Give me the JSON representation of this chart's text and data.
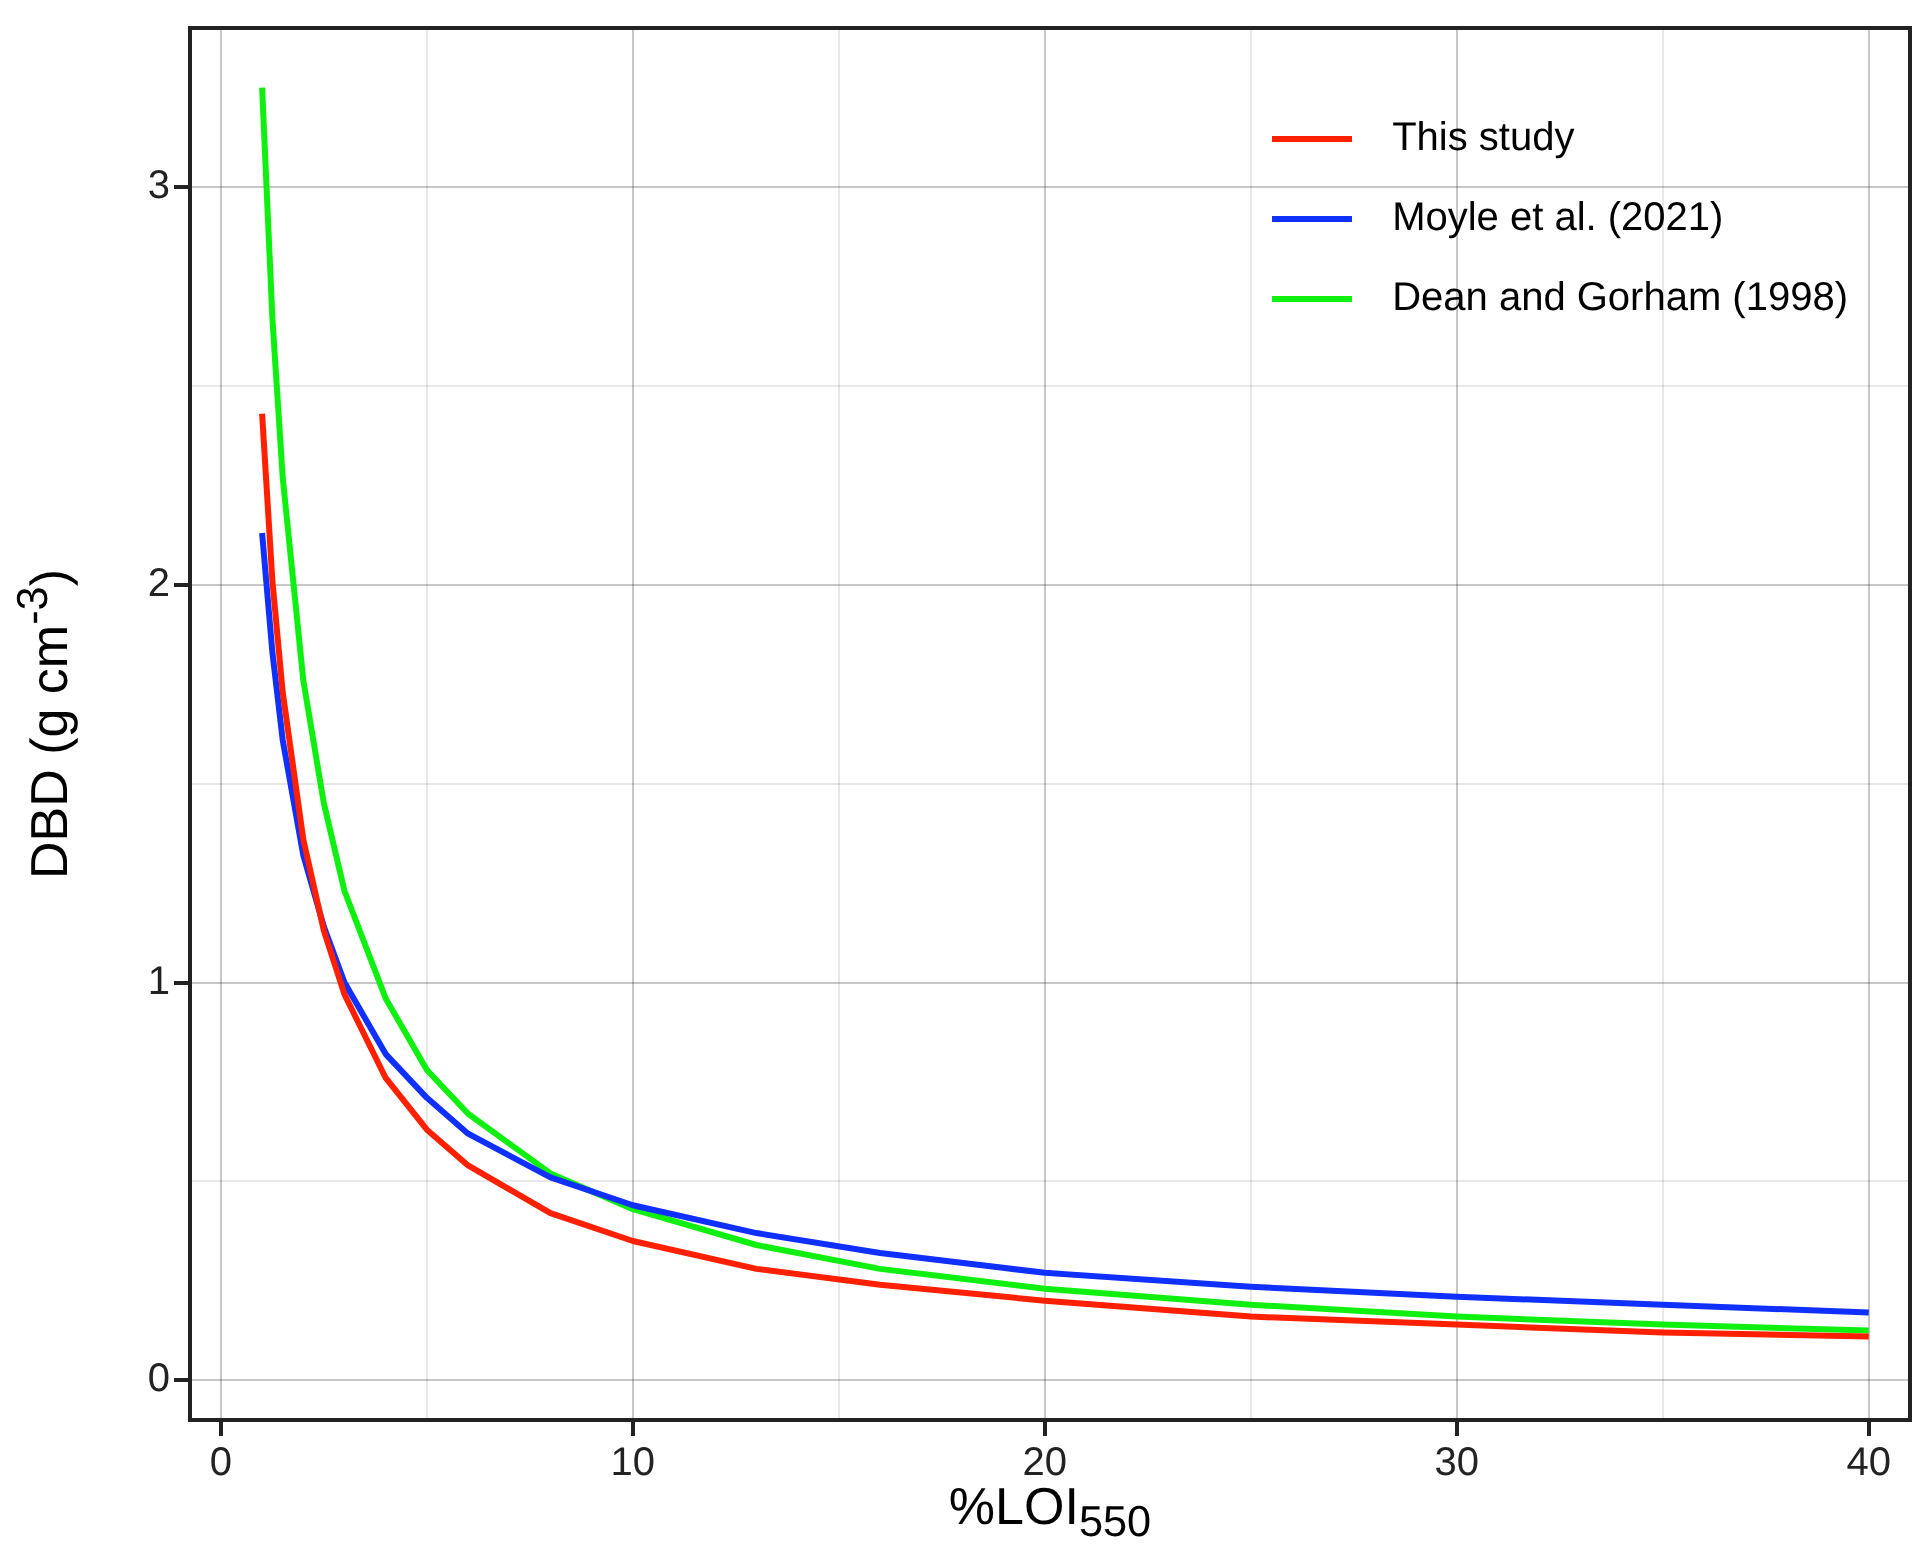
{
  "chart_data": {
    "type": "line",
    "xlabel": "%LOI$_{550}$",
    "ylabel": "DBD (g cm$^{-3}$)",
    "xlim": [
      -0.75,
      41
    ],
    "ylim": [
      -0.1,
      3.4
    ],
    "xticks": [
      0,
      {
        "value": 5,
        "label": null
      },
      10,
      {
        "value": 15,
        "label": null
      },
      20,
      {
        "value": 25,
        "label": null
      },
      30,
      {
        "value": 35,
        "label": null
      },
      40
    ],
    "yticks": [
      0,
      {
        "value": 0.5,
        "label": null
      },
      1,
      {
        "value": 1.5,
        "label": null
      },
      2,
      {
        "value": 2.5,
        "label": null
      },
      3
    ],
    "grid": true,
    "legend": "top right",
    "marker": "none",
    "line_style": "solid",
    "x": [
      1,
      1.25,
      1.5,
      2,
      2.5,
      3,
      4,
      5,
      6,
      8,
      10,
      13,
      16,
      20,
      25,
      30,
      35,
      40
    ],
    "series": [
      {
        "name": "This study",
        "color": "#ff2000",
        "values": [
          2.43,
          2.01,
          1.73,
          1.36,
          1.13,
          0.97,
          0.76,
          0.63,
          0.54,
          0.42,
          0.35,
          0.28,
          0.24,
          0.2,
          0.16,
          0.14,
          0.12,
          0.11
        ]
      },
      {
        "name": "Moyle et al. (2021)",
        "color": "#1030ff",
        "values": [
          2.13,
          1.83,
          1.61,
          1.32,
          1.14,
          1.0,
          0.82,
          0.71,
          0.62,
          0.51,
          0.44,
          0.37,
          0.32,
          0.27,
          0.235,
          0.21,
          0.19,
          0.17
        ]
      },
      {
        "name": "Dean and Gorham (1998)",
        "color": "#10f010",
        "values": [
          3.25,
          2.67,
          2.27,
          1.76,
          1.45,
          1.23,
          0.96,
          0.78,
          0.67,
          0.52,
          0.43,
          0.34,
          0.28,
          0.23,
          0.19,
          0.16,
          0.14,
          0.125
        ]
      }
    ]
  }
}
